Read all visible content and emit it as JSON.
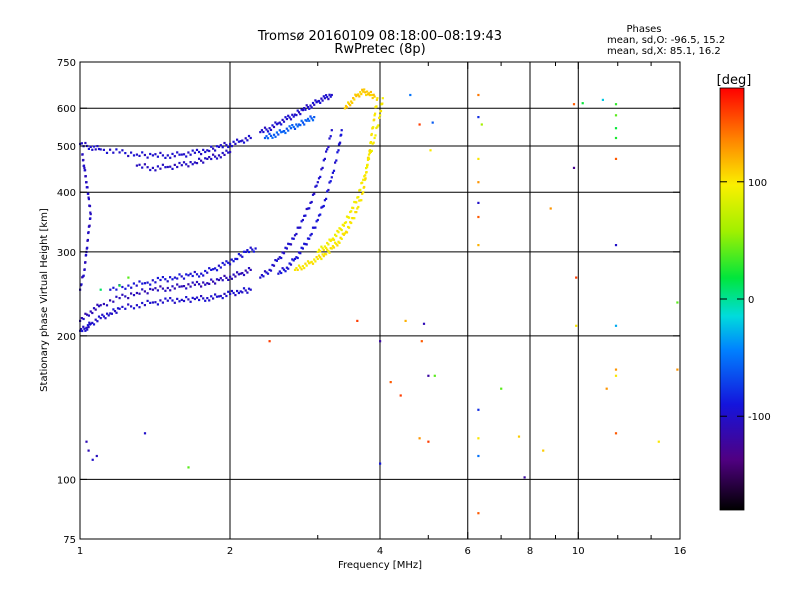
{
  "chart_data": {
    "type": "scatter",
    "title": "Tromsø 20160109 08:18:00–08:19:43",
    "subtitle": "RwPretec (8p)",
    "xlabel": "Frequency [MHz]",
    "ylabel": "Stationary phase Virtual Height [km]",
    "x_scale": "log",
    "y_scale": "log",
    "xlim": [
      1,
      16
    ],
    "ylim": [
      75,
      750
    ],
    "x_ticks": [
      1,
      2,
      4,
      6,
      8,
      10,
      16
    ],
    "x_tick_labels": [
      "1",
      "2",
      "4",
      "6",
      "8",
      "10",
      "16"
    ],
    "x_minor_ticks": [
      3,
      5,
      7,
      9,
      12,
      14
    ],
    "y_ticks": [
      75,
      100,
      200,
      300,
      400,
      500,
      600,
      750
    ],
    "y_tick_labels": [
      "75",
      "100",
      "200",
      "300",
      "400",
      "500",
      "600",
      "750"
    ],
    "grid": true,
    "stats": {
      "header": "Phases",
      "line1": "mean, sd,O: -96.5, 15.2",
      "line2": "mean, sd,X:  85.1, 16.2"
    },
    "colorbar": {
      "label": "[deg]",
      "range": [
        -180,
        180
      ],
      "ticks": [
        100,
        0,
        -100
      ],
      "tick_labels": [
        "100",
        "0",
        "-100"
      ]
    },
    "series": [
      {
        "traces": [
          {
            "phase": -100,
            "points": [
              [
                1.0,
                205
              ],
              [
                1.03,
                208
              ],
              [
                1.05,
                212
              ],
              [
                1.1,
                218
              ],
              [
                1.15,
                223
              ],
              [
                1.2,
                228
              ],
              [
                1.3,
                232
              ],
              [
                1.4,
                235
              ],
              [
                1.5,
                237
              ],
              [
                1.6,
                238
              ],
              [
                1.7,
                239
              ],
              [
                1.8,
                240
              ],
              [
                1.9,
                242
              ],
              [
                2.0,
                245
              ],
              [
                2.1,
                248
              ],
              [
                2.2,
                250
              ]
            ]
          },
          {
            "phase": -110,
            "points": [
              [
                1.0,
                215
              ],
              [
                1.05,
                225
              ],
              [
                1.1,
                232
              ],
              [
                1.2,
                240
              ],
              [
                1.3,
                246
              ],
              [
                1.4,
                250
              ],
              [
                1.5,
                252
              ],
              [
                1.6,
                254
              ],
              [
                1.7,
                256
              ],
              [
                1.8,
                258
              ],
              [
                1.9,
                262
              ],
              [
                2.0,
                266
              ],
              [
                2.1,
                270
              ],
              [
                2.2,
                275
              ]
            ]
          },
          {
            "phase": -95,
            "points": [
              [
                1.15,
                250
              ],
              [
                1.25,
                255
              ],
              [
                1.35,
                258
              ],
              [
                1.45,
                262
              ],
              [
                1.55,
                265
              ],
              [
                1.65,
                268
              ],
              [
                1.75,
                270
              ],
              [
                1.85,
                276
              ],
              [
                1.95,
                282
              ],
              [
                2.05,
                290
              ],
              [
                2.15,
                300
              ],
              [
                2.25,
                305
              ]
            ]
          },
          {
            "phase": -105,
            "points": [
              [
                1.0,
                250
              ],
              [
                1.02,
                275
              ],
              [
                1.03,
                300
              ],
              [
                1.04,
                330
              ],
              [
                1.05,
                360
              ],
              [
                1.04,
                390
              ],
              [
                1.03,
                420
              ],
              [
                1.02,
                450
              ],
              [
                1.01,
                480
              ]
            ]
          },
          {
            "phase": -100,
            "points": [
              [
                1.0,
                505
              ],
              [
                1.05,
                498
              ],
              [
                1.1,
                492
              ],
              [
                1.2,
                485
              ],
              [
                1.3,
                480
              ],
              [
                1.4,
                478
              ],
              [
                1.5,
                478
              ],
              [
                1.6,
                480
              ],
              [
                1.7,
                484
              ],
              [
                1.8,
                490
              ],
              [
                1.9,
                498
              ],
              [
                2.0,
                505
              ],
              [
                2.1,
                512
              ],
              [
                2.2,
                520
              ]
            ]
          },
          {
            "phase": -105,
            "points": [
              [
                1.3,
                455
              ],
              [
                1.4,
                450
              ],
              [
                1.5,
                452
              ],
              [
                1.6,
                456
              ],
              [
                1.7,
                462
              ],
              [
                1.8,
                470
              ],
              [
                1.9,
                478
              ],
              [
                2.0,
                486
              ]
            ]
          },
          {
            "phase": -100,
            "points": [
              [
                2.3,
                535
              ],
              [
                2.4,
                545
              ],
              [
                2.5,
                558
              ],
              [
                2.6,
                570
              ],
              [
                2.7,
                582
              ],
              [
                2.8,
                595
              ],
              [
                2.9,
                608
              ],
              [
                3.0,
                620
              ],
              [
                3.1,
                630
              ],
              [
                3.2,
                640
              ]
            ]
          },
          {
            "phase": -60,
            "points": [
              [
                2.35,
                520
              ],
              [
                2.45,
                528
              ],
              [
                2.55,
                536
              ],
              [
                2.65,
                545
              ],
              [
                2.75,
                555
              ],
              [
                2.85,
                565
              ],
              [
                2.95,
                575
              ]
            ]
          },
          {
            "phase": -100,
            "points": [
              [
                2.3,
                265
              ],
              [
                2.4,
                275
              ],
              [
                2.5,
                290
              ],
              [
                2.6,
                305
              ],
              [
                2.7,
                325
              ],
              [
                2.8,
                350
              ],
              [
                2.9,
                380
              ],
              [
                3.0,
                420
              ],
              [
                3.1,
                470
              ],
              [
                3.2,
                540
              ]
            ]
          },
          {
            "phase": -95,
            "points": [
              [
                2.5,
                270
              ],
              [
                2.6,
                278
              ],
              [
                2.7,
                290
              ],
              [
                2.8,
                305
              ],
              [
                2.9,
                325
              ],
              [
                3.0,
                350
              ],
              [
                3.1,
                385
              ],
              [
                3.2,
                430
              ],
              [
                3.3,
                490
              ],
              [
                3.35,
                540
              ]
            ]
          },
          {
            "phase": 100,
            "points": [
              [
                2.7,
                275
              ],
              [
                2.8,
                280
              ],
              [
                2.9,
                285
              ],
              [
                3.0,
                290
              ],
              [
                3.1,
                297
              ],
              [
                3.2,
                305
              ],
              [
                3.3,
                315
              ],
              [
                3.4,
                328
              ],
              [
                3.5,
                345
              ],
              [
                3.6,
                370
              ],
              [
                3.7,
                400
              ],
              [
                3.75,
                440
              ],
              [
                3.8,
                480
              ],
              [
                3.85,
                530
              ],
              [
                3.9,
                580
              ],
              [
                3.95,
                630
              ]
            ]
          },
          {
            "phase": 95,
            "points": [
              [
                3.0,
                300
              ],
              [
                3.1,
                308
              ],
              [
                3.2,
                318
              ],
              [
                3.3,
                330
              ],
              [
                3.4,
                345
              ],
              [
                3.5,
                365
              ],
              [
                3.6,
                390
              ],
              [
                3.7,
                425
              ],
              [
                3.8,
                470
              ],
              [
                3.9,
                520
              ],
              [
                4.0,
                580
              ],
              [
                4.05,
                630
              ]
            ]
          },
          {
            "phase": 110,
            "points": [
              [
                3.4,
                600
              ],
              [
                3.5,
                620
              ],
              [
                3.6,
                640
              ],
              [
                3.7,
                650
              ],
              [
                3.8,
                645
              ],
              [
                3.9,
                635
              ]
            ]
          }
        ],
        "scattered_points": [
          {
            "x": 1.03,
            "y": 120,
            "phase": -110
          },
          {
            "x": 1.04,
            "y": 115,
            "phase": -110
          },
          {
            "x": 1.06,
            "y": 110,
            "phase": -100
          },
          {
            "x": 1.08,
            "y": 112,
            "phase": -105
          },
          {
            "x": 1.35,
            "y": 125,
            "phase": -100
          },
          {
            "x": 1.65,
            "y": 106,
            "phase": 40
          },
          {
            "x": 1.2,
            "y": 255,
            "phase": 20
          },
          {
            "x": 1.25,
            "y": 265,
            "phase": 40
          },
          {
            "x": 1.1,
            "y": 250,
            "phase": 10
          },
          {
            "x": 2.4,
            "y": 195,
            "phase": 160
          },
          {
            "x": 3.6,
            "y": 215,
            "phase": 160
          },
          {
            "x": 4.0,
            "y": 195,
            "phase": -120
          },
          {
            "x": 4.0,
            "y": 108,
            "phase": -90
          },
          {
            "x": 4.2,
            "y": 160,
            "phase": 150
          },
          {
            "x": 4.4,
            "y": 150,
            "phase": 160
          },
          {
            "x": 4.5,
            "y": 215,
            "phase": 120
          },
          {
            "x": 4.6,
            "y": 640,
            "phase": -50
          },
          {
            "x": 4.8,
            "y": 122,
            "phase": 130
          },
          {
            "x": 4.8,
            "y": 555,
            "phase": 160
          },
          {
            "x": 4.85,
            "y": 195,
            "phase": 150
          },
          {
            "x": 4.9,
            "y": 212,
            "phase": -110
          },
          {
            "x": 5.0,
            "y": 165,
            "phase": -120
          },
          {
            "x": 5.0,
            "y": 120,
            "phase": 160
          },
          {
            "x": 5.05,
            "y": 490,
            "phase": 100
          },
          {
            "x": 5.1,
            "y": 560,
            "phase": -60
          },
          {
            "x": 5.15,
            "y": 165,
            "phase": 40
          },
          {
            "x": 6.3,
            "y": 85,
            "phase": 150
          },
          {
            "x": 6.3,
            "y": 640,
            "phase": 140
          },
          {
            "x": 6.3,
            "y": 575,
            "phase": -80
          },
          {
            "x": 6.3,
            "y": 470,
            "phase": 100
          },
          {
            "x": 6.3,
            "y": 420,
            "phase": 130
          },
          {
            "x": 6.3,
            "y": 380,
            "phase": -100
          },
          {
            "x": 6.3,
            "y": 355,
            "phase": 150
          },
          {
            "x": 6.3,
            "y": 310,
            "phase": 120
          },
          {
            "x": 6.3,
            "y": 140,
            "phase": -80
          },
          {
            "x": 6.3,
            "y": 122,
            "phase": 100
          },
          {
            "x": 6.3,
            "y": 112,
            "phase": -50
          },
          {
            "x": 6.4,
            "y": 555,
            "phase": 60
          },
          {
            "x": 7.0,
            "y": 155,
            "phase": 40
          },
          {
            "x": 7.6,
            "y": 123,
            "phase": 110
          },
          {
            "x": 7.8,
            "y": 101,
            "phase": -120
          },
          {
            "x": 8.5,
            "y": 115,
            "phase": 110
          },
          {
            "x": 8.8,
            "y": 370,
            "phase": 130
          },
          {
            "x": 9.8,
            "y": 612,
            "phase": 150
          },
          {
            "x": 9.8,
            "y": 450,
            "phase": -130
          },
          {
            "x": 9.9,
            "y": 265,
            "phase": 160
          },
          {
            "x": 9.9,
            "y": 210,
            "phase": 100
          },
          {
            "x": 10.2,
            "y": 615,
            "phase": 20
          },
          {
            "x": 11.2,
            "y": 625,
            "phase": -20
          },
          {
            "x": 11.9,
            "y": 612,
            "phase": 30
          },
          {
            "x": 11.9,
            "y": 580,
            "phase": 40
          },
          {
            "x": 11.9,
            "y": 545,
            "phase": 20
          },
          {
            "x": 11.9,
            "y": 520,
            "phase": 25
          },
          {
            "x": 11.9,
            "y": 470,
            "phase": 150
          },
          {
            "x": 11.9,
            "y": 310,
            "phase": -100
          },
          {
            "x": 11.9,
            "y": 210,
            "phase": -30
          },
          {
            "x": 11.9,
            "y": 170,
            "phase": 130
          },
          {
            "x": 11.9,
            "y": 165,
            "phase": 100
          },
          {
            "x": 11.9,
            "y": 125,
            "phase": 150
          },
          {
            "x": 11.4,
            "y": 155,
            "phase": 130
          },
          {
            "x": 15.8,
            "y": 235,
            "phase": 40
          },
          {
            "x": 15.8,
            "y": 170,
            "phase": 130
          },
          {
            "x": 14.5,
            "y": 120,
            "phase": 100
          }
        ]
      }
    ]
  }
}
